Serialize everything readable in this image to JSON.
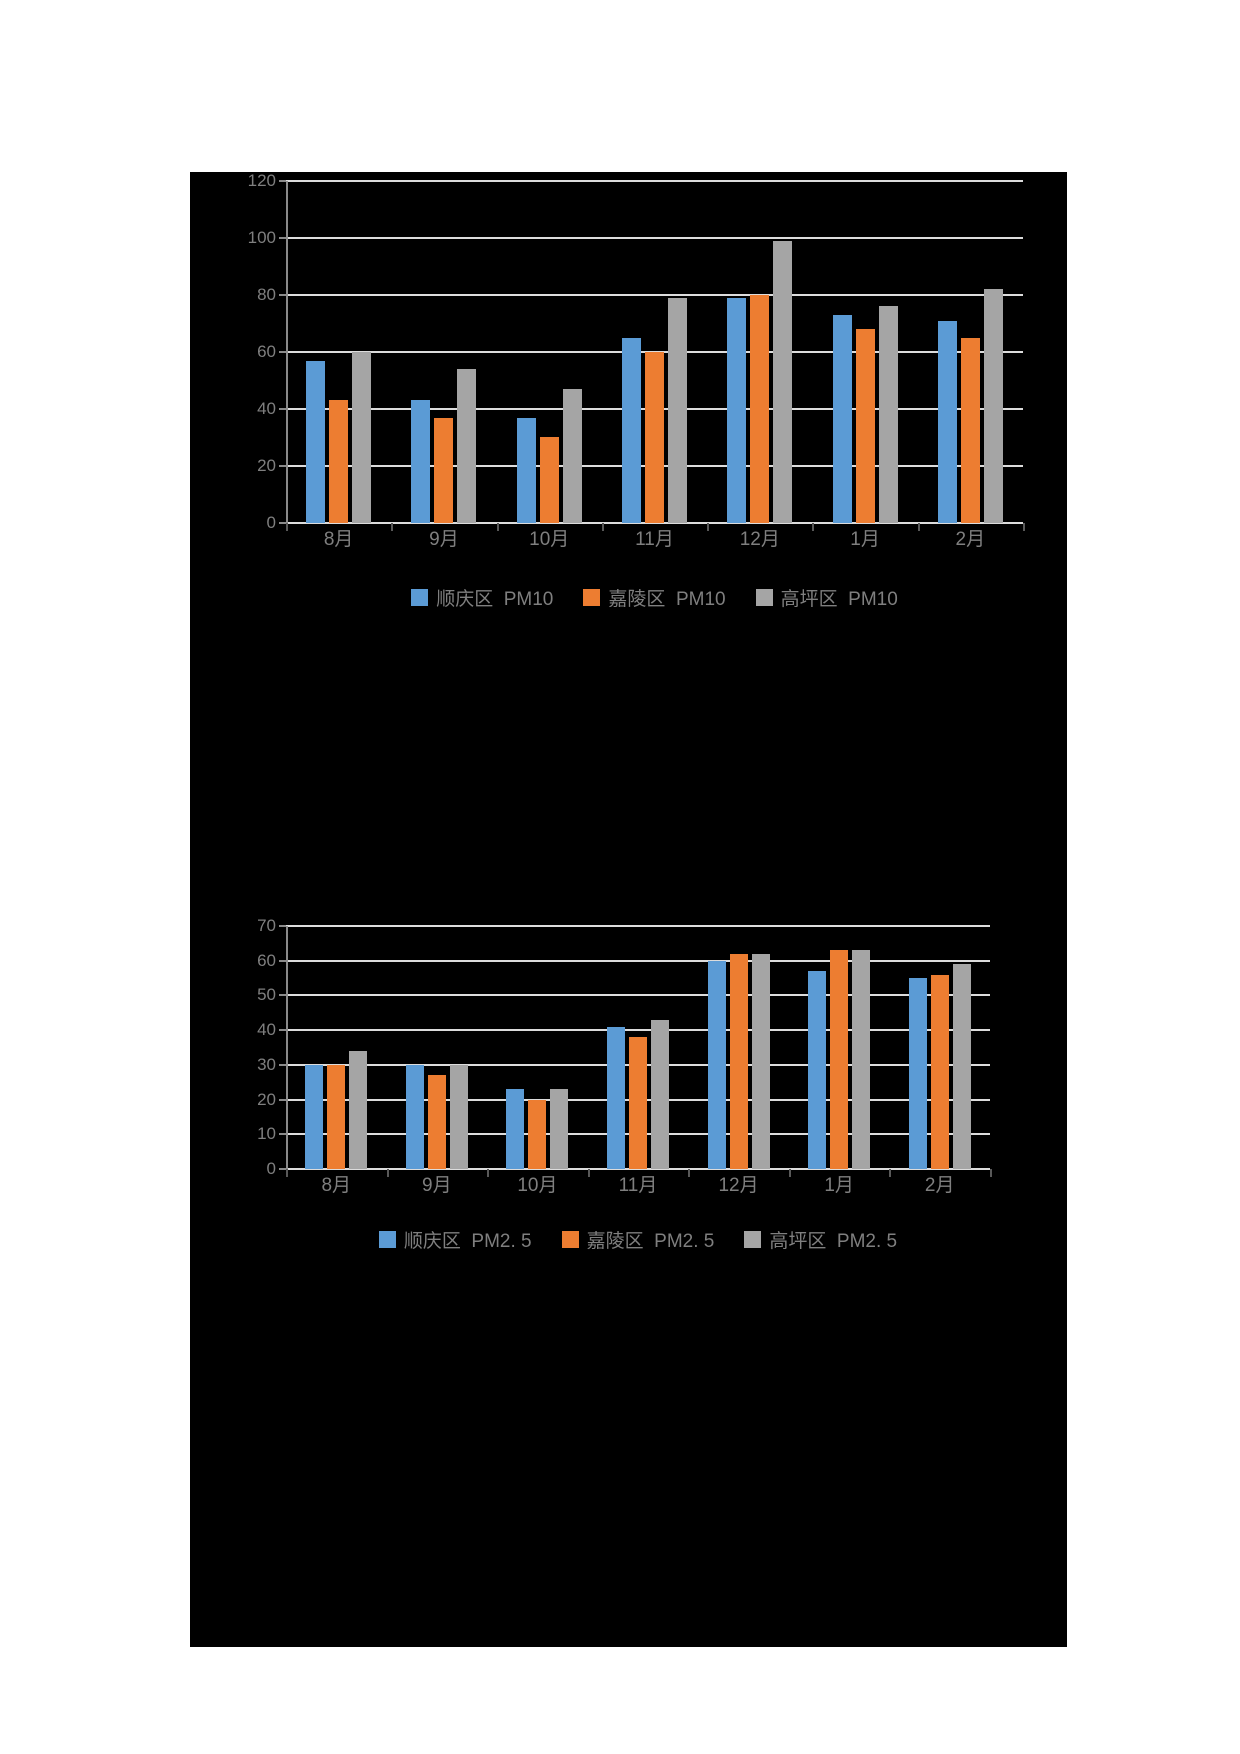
{
  "page": {
    "background_color": "#ffffff",
    "panel_background_color": "#000000"
  },
  "colors": {
    "series_blue": "#5B9BD5",
    "series_orange": "#ED7D31",
    "series_gray": "#A5A5A5",
    "gridline": "#DCDCDC",
    "axis_line": "#8a8a8a",
    "axis_tick": "#595959",
    "axis_text": "#7F7F7F",
    "legend_text": "#7F7F7F"
  },
  "chart_data": [
    {
      "type": "bar",
      "title": "",
      "categories": [
        "8月",
        "9月",
        "10月",
        "11月",
        "12月",
        "1月",
        "2月"
      ],
      "series": [
        {
          "name": "顺庆区  PM10",
          "color_key": "series_blue",
          "values": [
            57,
            43,
            37,
            65,
            79,
            73,
            71
          ]
        },
        {
          "name": "嘉陵区  PM10",
          "color_key": "series_orange",
          "values": [
            43,
            37,
            30,
            60,
            80,
            68,
            65
          ]
        },
        {
          "name": "高坪区  PM10",
          "color_key": "series_gray",
          "values": [
            60,
            54,
            47,
            79,
            99,
            76,
            82
          ]
        }
      ],
      "xlabel": "",
      "ylabel": "",
      "ylim": [
        0,
        120
      ],
      "ytick_step": 20,
      "grid": true,
      "legend_position": "bottom"
    },
    {
      "type": "bar",
      "title": "",
      "categories": [
        "8月",
        "9月",
        "10月",
        "11月",
        "12月",
        "1月",
        "2月"
      ],
      "series": [
        {
          "name": "顺庆区  PM2. 5",
          "color_key": "series_blue",
          "values": [
            30,
            30,
            23,
            41,
            60,
            57,
            55
          ]
        },
        {
          "name": "嘉陵区  PM2. 5",
          "color_key": "series_orange",
          "values": [
            30,
            27,
            20,
            38,
            62,
            63,
            56
          ]
        },
        {
          "name": "高坪区  PM2. 5",
          "color_key": "series_gray",
          "values": [
            34,
            30,
            23,
            43,
            62,
            63,
            59
          ]
        }
      ],
      "xlabel": "",
      "ylabel": "",
      "ylim": [
        0,
        70
      ],
      "ytick_step": 10,
      "grid": true,
      "legend_position": "bottom"
    }
  ]
}
